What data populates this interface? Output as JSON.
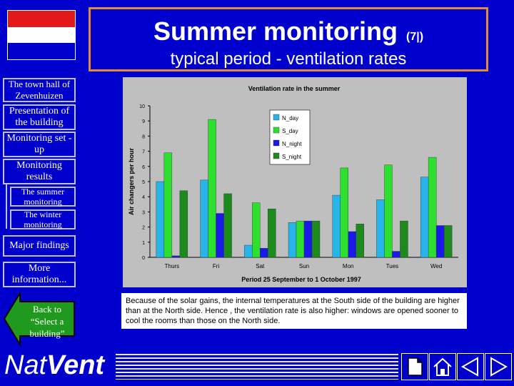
{
  "header": {
    "title": "Summer monitoring",
    "title_suffix": "(7|)",
    "subtitle": "typical period - ventilation rates"
  },
  "flag_colors": [
    "#e31a1c",
    "#ffffff",
    "#0000cc"
  ],
  "sidebar": {
    "items": [
      {
        "label": "The town hall of Zevenhuizen"
      },
      {
        "label": "Presentation of the building"
      },
      {
        "label": "Monitoring set -up"
      },
      {
        "label": "Monitoring results"
      },
      {
        "label": "The summer monitoring"
      },
      {
        "label": "The winter monitoring"
      },
      {
        "label": "Major findings"
      },
      {
        "label": "More information..."
      }
    ],
    "back": "Back to “Select a building”"
  },
  "logo": {
    "part1": "Nat",
    "part2": "Vent"
  },
  "caption": "Because of the solar gains, the internal temperatures at the South side of the building are higher than at the North side. Hence , the ventilation rate is also higher: windows are opened sooner to cool the rooms than those on the North side.",
  "chart_data": {
    "type": "bar",
    "title": "Ventilation rate in the summer",
    "xlabel": "Period 25 September to 1 October 1997",
    "ylabel": "Air changers per hour",
    "ylim": [
      0,
      10
    ],
    "yticks": [
      "0",
      "1",
      "2",
      "3",
      "4",
      "5",
      "6",
      "7",
      "8",
      "9",
      "10"
    ],
    "categories": [
      "Thurs",
      "Fri",
      "Sat",
      "Sun",
      "Mon",
      "Tues",
      "Wed"
    ],
    "series": [
      {
        "name": "N_day",
        "color": "#27b4e8",
        "values": [
          5.0,
          5.1,
          0.8,
          2.3,
          4.1,
          3.8,
          5.3
        ]
      },
      {
        "name": "S_day",
        "color": "#2ee02e",
        "values": [
          6.9,
          9.1,
          3.6,
          2.4,
          5.9,
          6.1,
          6.6
        ]
      },
      {
        "name": "N_night",
        "color": "#1a1ae8",
        "values": [
          0.1,
          2.9,
          0.6,
          2.4,
          1.7,
          0.4,
          2.1
        ]
      },
      {
        "name": "S_night",
        "color": "#1c8a1c",
        "values": [
          4.4,
          4.2,
          3.2,
          2.4,
          2.2,
          2.4,
          2.1
        ]
      }
    ],
    "grid": false,
    "legend": "top-right"
  }
}
